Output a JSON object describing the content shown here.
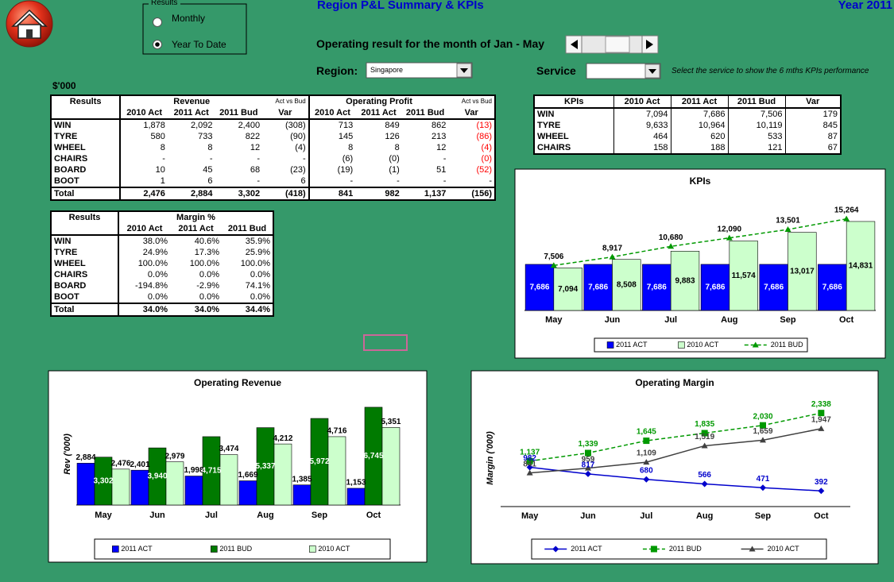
{
  "header": {
    "title": "Region P&L Summary & KPIs",
    "year": "Year 2011",
    "period": "Operating result for the month of Jan - May",
    "units": "$'000"
  },
  "controls": {
    "results_group": "Results",
    "options": [
      "Monthly",
      "Year To Date"
    ],
    "selected": 1,
    "region_label": "Region:",
    "region": "Singapore",
    "service_label": "Service",
    "service_hint": "Select the service to show the 6 mths KPIs performance"
  },
  "pl_table": {
    "header": [
      "Results",
      "Revenue",
      "Act vs Bud",
      "Operating Profit",
      "Act vs Bud"
    ],
    "columns": [
      "2010 Act",
      "2011 Act",
      "2011 Bud",
      "Var",
      "2010 Act",
      "2011 Act",
      "2011 Bud",
      "Var"
    ],
    "negative_color": "#ff0000",
    "rows": [
      [
        "WIN",
        "1,878",
        "2,092",
        "2,400",
        "(308)",
        "713",
        "849",
        "862",
        "(13)"
      ],
      [
        "TYRE",
        "580",
        "733",
        "822",
        "(90)",
        "145",
        "126",
        "213",
        "(86)"
      ],
      [
        "WHEEL",
        "8",
        "8",
        "12",
        "(4)",
        "8",
        "8",
        "12",
        "(4)"
      ],
      [
        "CHAIRS",
        "-",
        "-",
        "-",
        "-",
        "(6)",
        "(0)",
        "-",
        "(0)"
      ],
      [
        "BOARD",
        "10",
        "45",
        "68",
        "(23)",
        "(19)",
        "(1)",
        "51",
        "(52)"
      ],
      [
        "BOOT",
        "1",
        "6",
        "-",
        "6",
        "-",
        "-",
        "-",
        "-"
      ],
      [
        "Total",
        "2,476",
        "2,884",
        "3,302",
        "(418)",
        "841",
        "982",
        "1,137",
        "(156)"
      ]
    ]
  },
  "margin_table": {
    "header": [
      "Results",
      "Margin %"
    ],
    "columns": [
      "2010 Act",
      "2011 Act",
      "2011 Bud"
    ],
    "rows": [
      [
        "WIN",
        "38.0%",
        "40.6%",
        "35.9%"
      ],
      [
        "TYRE",
        "24.9%",
        "17.3%",
        "25.9%"
      ],
      [
        "WHEEL",
        "100.0%",
        "100.0%",
        "100.0%"
      ],
      [
        "CHAIRS",
        "0.0%",
        "0.0%",
        "0.0%"
      ],
      [
        "BOARD",
        "-194.8%",
        "-2.9%",
        "74.1%"
      ],
      [
        "BOOT",
        "0.0%",
        "0.0%",
        "0.0%"
      ],
      [
        "Total",
        "34.0%",
        "34.0%",
        "34.4%"
      ]
    ]
  },
  "kpi_table": {
    "columns": [
      "KPIs",
      "2010 Act",
      "2011 Act",
      "2011 Bud",
      "Var"
    ],
    "rows": [
      [
        "WIN",
        "7,094",
        "7,686",
        "7,506",
        "179"
      ],
      [
        "TYRE",
        "9,633",
        "10,964",
        "10,119",
        "845"
      ],
      [
        "WHEEL",
        "464",
        "620",
        "533",
        "87"
      ],
      [
        "CHAIRS",
        "158",
        "188",
        "121",
        "67"
      ]
    ]
  },
  "chart_data": [
    {
      "type": "bar",
      "title": "KPIs",
      "categories": [
        "May",
        "Jun",
        "Jul",
        "Aug",
        "Sep",
        "Oct"
      ],
      "ylim": [
        0,
        18000
      ],
      "series": [
        {
          "name": "2011 ACT",
          "color": "#0000ff",
          "values": [
            7686,
            7686,
            7686,
            7686,
            7686,
            7686
          ],
          "value_labels": [
            "7,686",
            "7,686",
            "7,686",
            "7,686",
            "7,686",
            "7,686"
          ]
        },
        {
          "name": "2010 ACT",
          "color": "#ccffcc",
          "values": [
            7094,
            8508,
            9883,
            11574,
            13017,
            14831
          ],
          "value_labels": [
            "7,094",
            "8,508",
            "9,883",
            "11,574",
            "13,017",
            "14,831"
          ]
        },
        {
          "name": "2011 BUD",
          "type": "line",
          "dash": true,
          "marker": "triangle",
          "color": "#009900",
          "values": [
            7506,
            8917,
            10680,
            12090,
            13501,
            15264
          ],
          "value_labels": [
            "7,506",
            "8,917",
            "10,680",
            "12,090",
            "13,501",
            "15,264"
          ]
        }
      ]
    },
    {
      "type": "bar",
      "title": "Operating Revenue",
      "y_label": "Rev ('000)",
      "categories": [
        "May",
        "Jun",
        "Jul",
        "Aug",
        "Sep",
        "Oct"
      ],
      "ylim": [
        0,
        8000
      ],
      "series": [
        {
          "name": "2011 ACT",
          "color": "#0000ff",
          "values": [
            2884,
            2401,
            1998,
            1669,
            1385,
            1153
          ],
          "value_labels": [
            "2,884",
            "2,401",
            "1,998",
            "1,669",
            "1,385",
            "1,153"
          ]
        },
        {
          "name": "2011 BUD",
          "color": "#007a00",
          "values": [
            3302,
            3940,
            4715,
            5337,
            5972,
            6745
          ],
          "value_labels": [
            "3,302",
            "3,940",
            "4,715",
            "5,337",
            "5,972",
            "6,745"
          ]
        },
        {
          "name": "2010 ACT",
          "color": "#ccffcc",
          "values": [
            2476,
            2979,
            3474,
            4212,
            4716,
            5351
          ],
          "value_labels": [
            "2,476",
            "2,979",
            "3,474",
            "4,212",
            "4,716",
            "5,351"
          ]
        }
      ]
    },
    {
      "type": "line",
      "title": "Operating Margin",
      "y_label": "Margin ('000)",
      "categories": [
        "May",
        "Jun",
        "Jul",
        "Aug",
        "Sep",
        "Oct"
      ],
      "ylim": [
        0,
        2500
      ],
      "series": [
        {
          "name": "2011 ACT",
          "marker": "diamond",
          "color": "#0000cc",
          "values": [
            982,
            817,
            680,
            566,
            471,
            392
          ]
        },
        {
          "name": "2011 BUD",
          "marker": "square",
          "dash": true,
          "color": "#009900",
          "values": [
            1137,
            1339,
            1645,
            1835,
            2030,
            2338
          ],
          "value_labels": [
            "1,137",
            "1,339",
            "1,645",
            "1,835",
            "2,030",
            "2,338"
          ]
        },
        {
          "name": "2010 ACT",
          "marker": "triangle",
          "color": "#404040",
          "values": [
            841,
            959,
            1109,
            1519,
            1659,
            1947
          ],
          "value_labels": [
            "841",
            "959",
            "1,109",
            "1,519",
            "1,659",
            "1,947"
          ]
        }
      ]
    }
  ]
}
